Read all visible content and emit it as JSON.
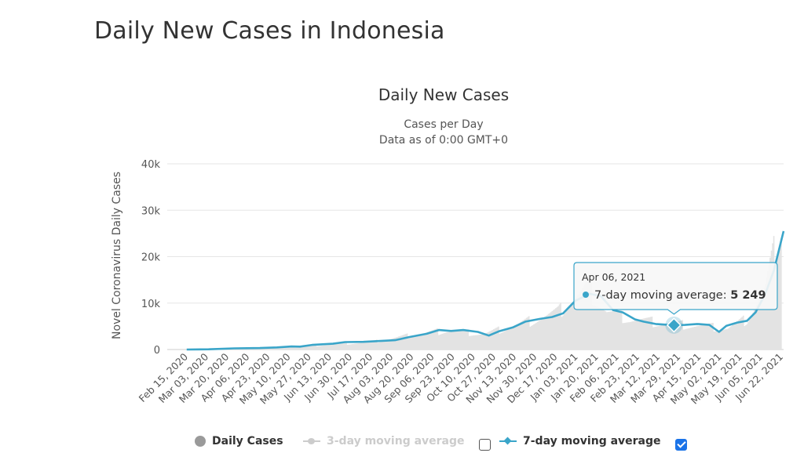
{
  "page": {
    "title": "Daily New Cases in Indonesia"
  },
  "chart_data": {
    "type": "line",
    "title": "Daily New Cases",
    "subtitle": [
      "Cases per Day",
      "Data as of 0:00 GMT+0"
    ],
    "ylabel": "Novel Coronavirus Daily Cases",
    "ylim": [
      0,
      40000
    ],
    "yticks": [
      0,
      10000,
      20000,
      30000,
      40000
    ],
    "ytick_labels": [
      "0",
      "10k",
      "20k",
      "30k",
      "40k"
    ],
    "x_tick_labels": [
      "Feb 15, 2020",
      "Mar 03, 2020",
      "Mar 20, 2020",
      "Apr 06, 2020",
      "Apr 23, 2020",
      "May 10, 2020",
      "May 27, 2020",
      "Jun 13, 2020",
      "Jun 30, 2020",
      "Jul 17, 2020",
      "Aug 03, 2020",
      "Aug 20, 2020",
      "Sep 06, 2020",
      "Sep 23, 2020",
      "Oct 10, 2020",
      "Oct 27, 2020",
      "Nov 13, 2020",
      "Nov 30, 2020",
      "Dec 17, 2020",
      "Jan 03, 2021",
      "Jan 20, 2021",
      "Feb 06, 2021",
      "Feb 23, 2021",
      "Mar 12, 2021",
      "Mar 29, 2021",
      "Apr 15, 2021",
      "May 02, 2021",
      "May 19, 2021",
      "Jun 05, 2021",
      "Jun 22, 2021"
    ],
    "x_range": [
      "2020-02-15",
      "2021-07-05"
    ],
    "grid": true,
    "series": [
      {
        "name": "Daily Cases",
        "kind": "bar",
        "color": "#e3e3e3",
        "visible": true,
        "points": [
          [
            "2020-03-02",
            2
          ],
          [
            "2020-04-01",
            150
          ],
          [
            "2020-05-01",
            350
          ],
          [
            "2020-06-01",
            600
          ],
          [
            "2020-07-01",
            1100
          ],
          [
            "2020-08-01",
            1600
          ],
          [
            "2020-09-01",
            3000
          ],
          [
            "2020-10-01",
            4100
          ],
          [
            "2020-11-01",
            3300
          ],
          [
            "2020-12-01",
            5500
          ],
          [
            "2021-01-01",
            8000
          ],
          [
            "2021-01-25",
            13000
          ],
          [
            "2021-02-10",
            8000
          ],
          [
            "2021-03-01",
            6500
          ],
          [
            "2021-04-01",
            5500
          ],
          [
            "2021-05-01",
            5000
          ],
          [
            "2021-05-20",
            4500
          ],
          [
            "2021-06-05",
            6500
          ],
          [
            "2021-06-20",
            13000
          ],
          [
            "2021-07-03",
            27000
          ]
        ]
      },
      {
        "name": "3-day moving average",
        "color": "#cccccc",
        "visible": false,
        "checked": false
      },
      {
        "name": "7-day moving average",
        "color": "#3aa5c9",
        "visible": true,
        "checked": true,
        "points": [
          [
            "2020-03-02",
            0
          ],
          [
            "2020-03-20",
            50
          ],
          [
            "2020-04-10",
            250
          ],
          [
            "2020-05-01",
            320
          ],
          [
            "2020-05-15",
            450
          ],
          [
            "2020-05-27",
            650
          ],
          [
            "2020-06-03",
            620
          ],
          [
            "2020-06-13",
            1000
          ],
          [
            "2020-06-30",
            1250
          ],
          [
            "2020-07-10",
            1600
          ],
          [
            "2020-07-25",
            1650
          ],
          [
            "2020-08-05",
            1800
          ],
          [
            "2020-08-20",
            2000
          ],
          [
            "2020-09-01",
            2700
          ],
          [
            "2020-09-15",
            3400
          ],
          [
            "2020-09-25",
            4200
          ],
          [
            "2020-10-05",
            4000
          ],
          [
            "2020-10-15",
            4200
          ],
          [
            "2020-10-27",
            3800
          ],
          [
            "2020-11-05",
            3000
          ],
          [
            "2020-11-13",
            3900
          ],
          [
            "2020-11-25",
            4800
          ],
          [
            "2020-12-05",
            6000
          ],
          [
            "2020-12-17",
            6600
          ],
          [
            "2020-12-27",
            7000
          ],
          [
            "2021-01-05",
            7800
          ],
          [
            "2021-01-15",
            10500
          ],
          [
            "2021-01-27",
            12000
          ],
          [
            "2021-02-05",
            11500
          ],
          [
            "2021-02-15",
            8500
          ],
          [
            "2021-02-23",
            8000
          ],
          [
            "2021-03-05",
            6500
          ],
          [
            "2021-03-12",
            6000
          ],
          [
            "2021-03-22",
            5500
          ],
          [
            "2021-04-06",
            5249
          ],
          [
            "2021-04-15",
            5300
          ],
          [
            "2021-04-25",
            5500
          ],
          [
            "2021-05-05",
            5300
          ],
          [
            "2021-05-13",
            3800
          ],
          [
            "2021-05-19",
            5100
          ],
          [
            "2021-05-28",
            5800
          ],
          [
            "2021-06-05",
            6200
          ],
          [
            "2021-06-12",
            8000
          ],
          [
            "2021-06-20",
            12000
          ],
          [
            "2021-06-27",
            17000
          ],
          [
            "2021-07-05",
            25500
          ]
        ]
      }
    ],
    "legend_position": "bottom",
    "tooltip": {
      "date": "Apr 06, 2021",
      "series_label": "7-day moving average:",
      "value": "5 249",
      "point": [
        "2021-04-06",
        5249
      ]
    }
  }
}
